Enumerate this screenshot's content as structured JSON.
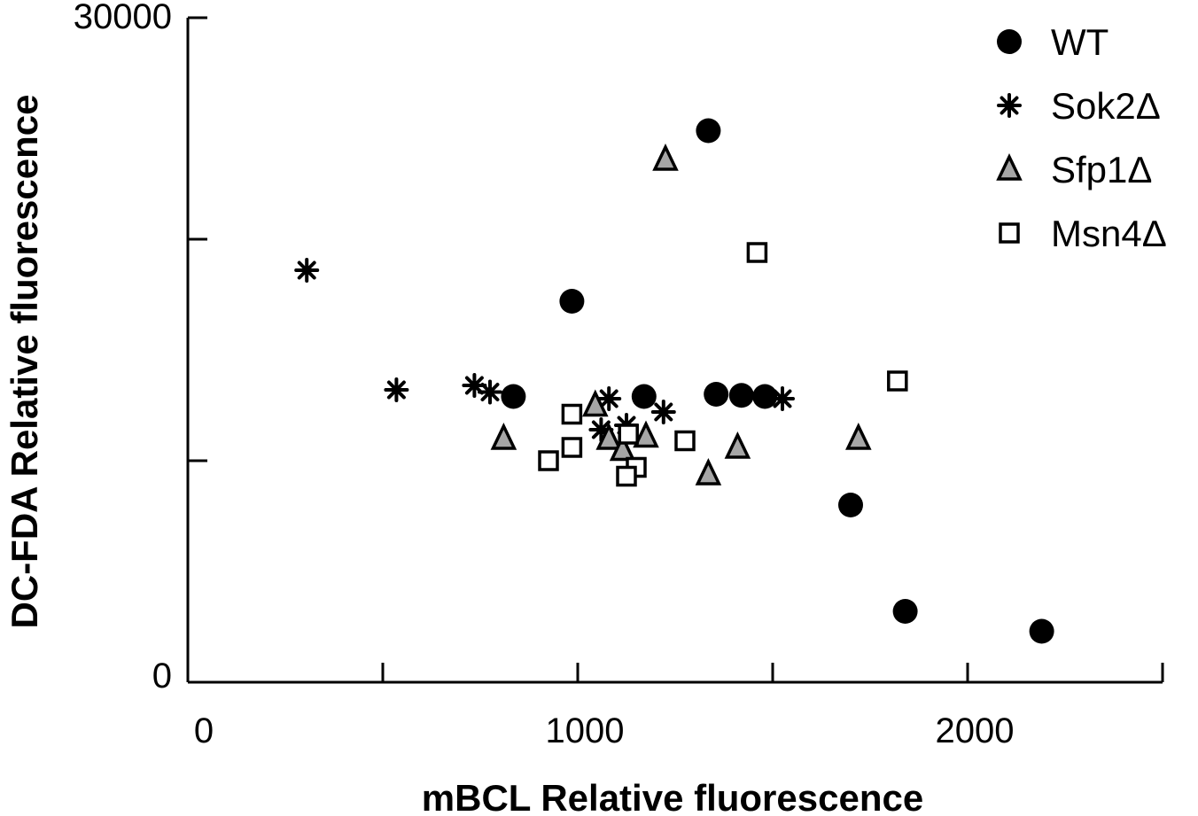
{
  "chart_data": {
    "type": "scatter",
    "title": "",
    "xlabel": "mBCL Relative fluorescence",
    "ylabel": "DC-FDA  Relative fluorescence",
    "xlim": [
      0,
      2500
    ],
    "ylim": [
      0,
      30000
    ],
    "x_ticks": [
      0,
      500,
      1000,
      1500,
      2000,
      2500
    ],
    "x_tick_labels": [
      {
        "value": 0,
        "label": "0"
      },
      {
        "value": 1000,
        "label": "1000"
      },
      {
        "value": 2000,
        "label": "2000"
      }
    ],
    "y_ticks": [
      0,
      10000,
      20000,
      30000
    ],
    "y_tick_labels": [
      {
        "value": 0,
        "label": "0"
      },
      {
        "value": 30000,
        "label": "30000"
      }
    ],
    "grid": false,
    "legend_position": "top-right",
    "series": [
      {
        "name": "WT",
        "marker": "circle",
        "color": "#000000",
        "points": [
          [
            1335,
            24900
          ],
          [
            985,
            17200
          ],
          [
            835,
            12900
          ],
          [
            1170,
            12900
          ],
          [
            1355,
            13000
          ],
          [
            1420,
            12950
          ],
          [
            1480,
            12900
          ],
          [
            1700,
            8000
          ],
          [
            1840,
            3200
          ],
          [
            2190,
            2300
          ]
        ]
      },
      {
        "name": "Sok2Δ",
        "marker": "asterisk",
        "color": "#000000",
        "points": [
          [
            305,
            18600
          ],
          [
            535,
            13200
          ],
          [
            735,
            13400
          ],
          [
            775,
            13100
          ],
          [
            1060,
            11400
          ],
          [
            1080,
            12800
          ],
          [
            1125,
            11600
          ],
          [
            1220,
            12200
          ],
          [
            1525,
            12800
          ]
        ]
      },
      {
        "name": "Sfp1Δ",
        "marker": "triangle",
        "color": "#000000",
        "fill": "#a6a6a6",
        "points": [
          [
            1225,
            23600
          ],
          [
            810,
            11000
          ],
          [
            1045,
            12500
          ],
          [
            1080,
            11000
          ],
          [
            1115,
            10500
          ],
          [
            1175,
            11100
          ],
          [
            1335,
            9400
          ],
          [
            1410,
            10600
          ],
          [
            1720,
            11000
          ]
        ]
      },
      {
        "name": "Msn4Δ",
        "marker": "square",
        "color": "#000000",
        "fill": "#ffffff",
        "points": [
          [
            1460,
            19400
          ],
          [
            1820,
            13600
          ],
          [
            985,
            12100
          ],
          [
            985,
            10600
          ],
          [
            925,
            10000
          ],
          [
            1150,
            9700
          ],
          [
            1125,
            9300
          ],
          [
            1275,
            10900
          ],
          [
            1130,
            11200
          ]
        ]
      }
    ]
  }
}
